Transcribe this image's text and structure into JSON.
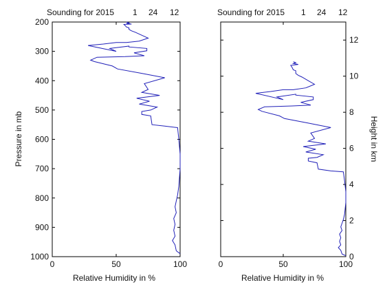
{
  "chart_data": [
    {
      "type": "line",
      "title": {
        "prefix": "Sounding for 2015",
        "part1": "1",
        "part2": "24",
        "part3": "12"
      },
      "xlabel": "Relative Humidity in %",
      "ylabel": "Pressure in mb",
      "xlim": [
        0,
        100
      ],
      "ylim": [
        200,
        1000
      ],
      "y_reversed": true,
      "x_ticks": [
        0,
        50,
        100
      ],
      "y_ticks": [
        200,
        300,
        400,
        500,
        600,
        700,
        800,
        900,
        1000
      ],
      "series": [
        {
          "x": [
            100,
            97,
            96,
            94,
            96,
            95,
            96,
            95,
            97,
            96,
            97,
            98,
            99,
            100,
            100,
            99,
            98,
            88,
            78,
            77,
            70,
            70,
            77,
            82,
            68,
            76,
            66,
            84,
            70,
            75,
            72,
            88,
            70,
            51,
            47,
            33,
            30,
            35,
            57,
            72,
            64,
            74,
            74,
            60,
            60,
            45,
            50,
            28,
            40,
            50,
            58,
            68,
            75,
            70,
            65,
            62,
            60,
            60,
            58,
            57,
            56,
            62,
            58,
            60,
            58
          ],
          "y": [
            990,
            980,
            960,
            945,
            930,
            910,
            890,
            870,
            850,
            830,
            810,
            790,
            760,
            700,
            650,
            600,
            560,
            555,
            550,
            520,
            515,
            505,
            500,
            490,
            480,
            470,
            460,
            450,
            440,
            430,
            410,
            390,
            375,
            360,
            350,
            335,
            330,
            320,
            318,
            315,
            305,
            298,
            290,
            285,
            282,
            290,
            300,
            280,
            275,
            270,
            270,
            265,
            255,
            245,
            235,
            230,
            225,
            220,
            217,
            212,
            208,
            207,
            205,
            203,
            200
          ]
        }
      ]
    },
    {
      "type": "line",
      "title": {
        "prefix": "Sounding for 2015",
        "part1": "1",
        "part2": "24",
        "part3": "12"
      },
      "xlabel": "Relative Humidity in %",
      "ylabel": "Height in km",
      "xlim": [
        0,
        100
      ],
      "ylim": [
        0,
        13
      ],
      "y_ticks": [
        0,
        2,
        4,
        6,
        8,
        10,
        12
      ],
      "x_ticks": [
        0,
        50,
        100
      ],
      "series": [
        {
          "x": [
            100,
            97,
            96,
            94,
            96,
            95,
            96,
            95,
            97,
            96,
            97,
            98,
            99,
            100,
            100,
            99,
            98,
            88,
            78,
            77,
            70,
            70,
            77,
            82,
            68,
            76,
            66,
            84,
            70,
            75,
            72,
            88,
            70,
            51,
            47,
            33,
            30,
            35,
            57,
            72,
            64,
            74,
            74,
            60,
            60,
            45,
            50,
            28,
            40,
            50,
            58,
            68,
            75,
            70,
            65,
            62,
            60,
            60,
            58,
            57,
            56,
            62,
            58,
            60,
            58
          ],
          "y": [
            0.05,
            0.15,
            0.35,
            0.5,
            0.65,
            0.85,
            1.05,
            1.25,
            1.45,
            1.65,
            1.85,
            2.05,
            2.35,
            3.0,
            3.6,
            4.2,
            4.7,
            4.75,
            4.85,
            5.2,
            5.3,
            5.45,
            5.5,
            5.65,
            5.8,
            5.95,
            6.1,
            6.25,
            6.4,
            6.55,
            6.85,
            7.15,
            7.4,
            7.65,
            7.8,
            8.05,
            8.15,
            8.3,
            8.35,
            8.4,
            8.55,
            8.7,
            8.85,
            8.95,
            9.0,
            8.85,
            8.7,
            9.05,
            9.15,
            9.25,
            9.25,
            9.35,
            9.55,
            9.75,
            9.95,
            10.05,
            10.15,
            10.3,
            10.35,
            10.5,
            10.6,
            10.65,
            10.7,
            10.75,
            10.8
          ]
        }
      ]
    }
  ]
}
